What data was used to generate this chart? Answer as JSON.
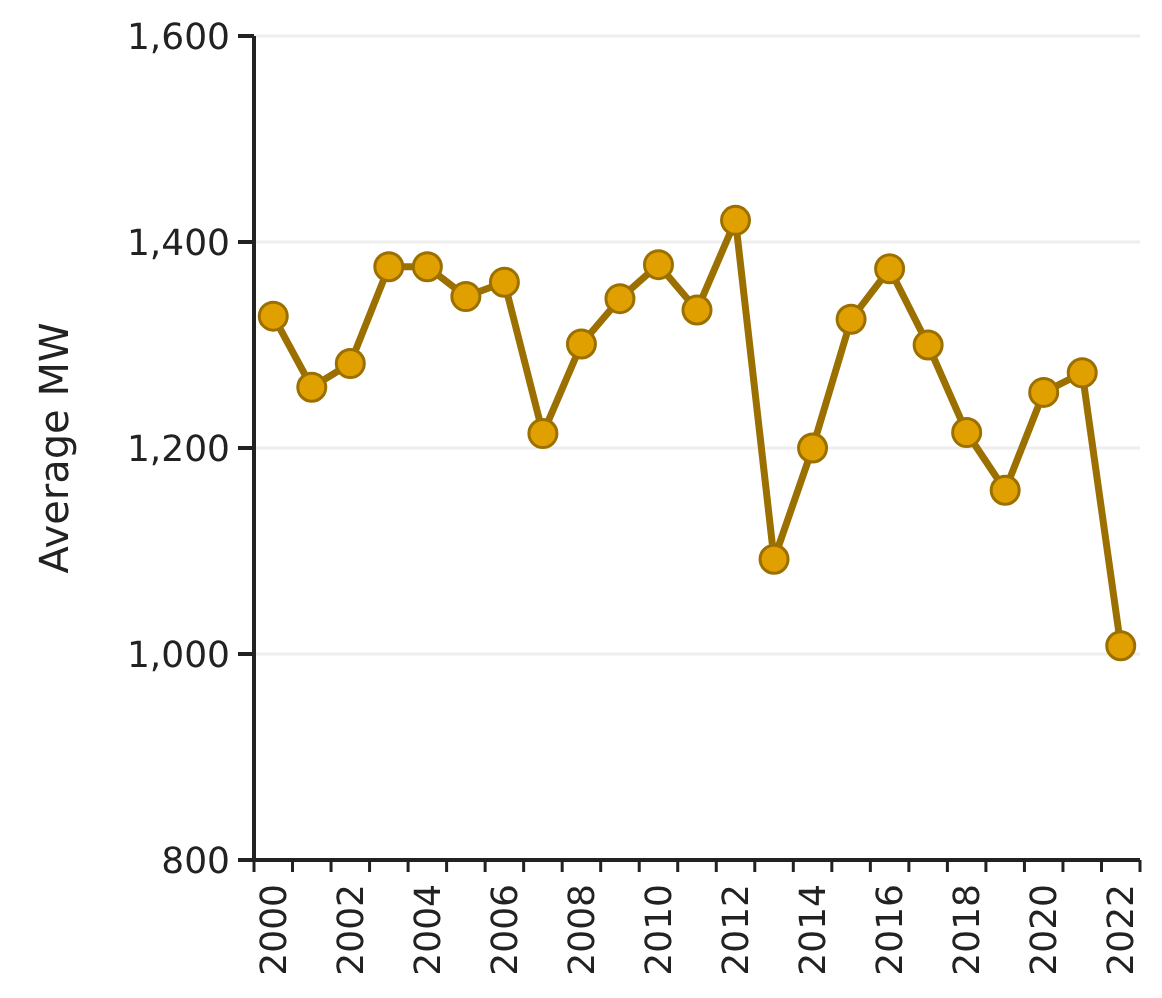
{
  "chart_data": {
    "type": "line",
    "ylabel": "Average MW",
    "categories": [
      "2000",
      null,
      "2002",
      null,
      "2004",
      null,
      "2006",
      null,
      "2008",
      null,
      "2010",
      null,
      "2012",
      null,
      "2014",
      null,
      "2016",
      null,
      "2018",
      null,
      "2020",
      null,
      "2022"
    ],
    "series": [
      {
        "color": "#9c7000",
        "values": [
          1328,
          1259,
          1282,
          1376,
          1376,
          1347,
          1361,
          1214,
          1301,
          1345,
          1378,
          1334,
          1421,
          1092,
          1200,
          1325,
          1374,
          1300,
          1215,
          1159,
          1254,
          1273,
          1008
        ]
      }
    ],
    "ylim": [
      800,
      1600
    ],
    "yticks": [
      {
        "value": 800,
        "label": "800"
      },
      {
        "value": 1000,
        "label": "1,000"
      },
      {
        "value": 1200,
        "label": "1,200"
      },
      {
        "value": 1400,
        "label": "1,400"
      },
      {
        "value": 1600,
        "label": "1,600"
      }
    ],
    "grid": "y",
    "marker": "circle",
    "line_style": "solid"
  }
}
